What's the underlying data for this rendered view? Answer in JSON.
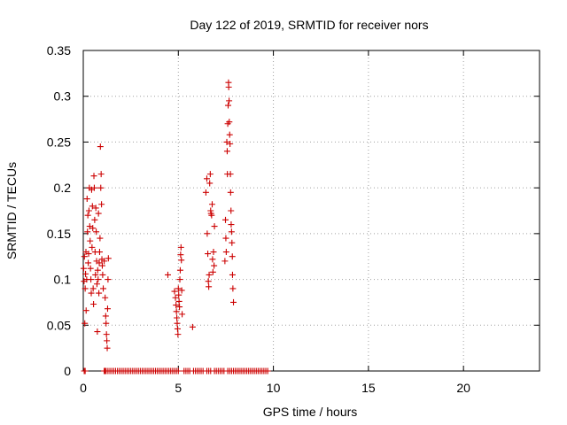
{
  "chart_data": {
    "type": "scatter",
    "title": "Day 122 of 2019, SRMTID for receiver nors",
    "xlabel": "GPS time / hours",
    "ylabel": "SRMTID / TECUs",
    "xlim": [
      0,
      24
    ],
    "ylim": [
      0,
      0.35
    ],
    "x_ticks": [
      0,
      5,
      10,
      15,
      20
    ],
    "y_ticks": [
      0,
      0.05,
      0.1,
      0.15,
      0.2,
      0.25,
      0.3,
      0.35
    ],
    "x_tick_labels": [
      "0",
      "5",
      "10",
      "15",
      "20"
    ],
    "y_tick_labels": [
      "0",
      "0.05",
      "0.1",
      "0.15",
      "0.2",
      "0.25",
      "0.3",
      "0.35"
    ],
    "grid": true,
    "marker": "plus",
    "color": "#cc0000",
    "series": [
      {
        "points": [
          [
            0.02,
            0.112
          ],
          [
            0.04,
            0.098
          ],
          [
            0.06,
            0.125
          ],
          [
            0.08,
            0.052
          ],
          [
            0.1,
            0.09
          ],
          [
            0.12,
            0.106
          ],
          [
            0.14,
            0.13
          ],
          [
            0.15,
            0.066
          ],
          [
            0.18,
            0.1
          ],
          [
            0.2,
            0.188
          ],
          [
            0.22,
            0.152
          ],
          [
            0.24,
            0.17
          ],
          [
            0.26,
            0.118
          ],
          [
            0.28,
            0.128
          ],
          [
            0.3,
            0.175
          ],
          [
            0.32,
            0.2
          ],
          [
            0.34,
            0.158
          ],
          [
            0.36,
            0.142
          ],
          [
            0.38,
            0.112
          ],
          [
            0.4,
            0.1
          ],
          [
            0.42,
            0.085
          ],
          [
            0.44,
            0.198
          ],
          [
            0.46,
            0.135
          ],
          [
            0.48,
            0.18
          ],
          [
            0.5,
            0.156
          ],
          [
            0.52,
            0.09
          ],
          [
            0.54,
            0.073
          ],
          [
            0.56,
            0.213
          ],
          [
            0.58,
            0.2
          ],
          [
            0.6,
            0.165
          ],
          [
            0.62,
            0.13
          ],
          [
            0.64,
            0.105
          ],
          [
            0.66,
            0.178
          ],
          [
            0.68,
            0.152
          ],
          [
            0.7,
            0.12
          ],
          [
            0.72,
            0.095
          ],
          [
            0.74,
            0.043
          ],
          [
            0.76,
            0.11
          ],
          [
            0.78,
            0.1
          ],
          [
            0.8,
            0.172
          ],
          [
            0.82,
            0.085
          ],
          [
            0.84,
            0.118
          ],
          [
            0.86,
            0.13
          ],
          [
            0.88,
            0.145
          ],
          [
            0.9,
            0.245
          ],
          [
            0.92,
            0.2
          ],
          [
            0.94,
            0.215
          ],
          [
            0.96,
            0.182
          ],
          [
            0.98,
            0.122
          ],
          [
            1.0,
            0.115
          ],
          [
            1.02,
            0.105
          ],
          [
            1.05,
            0.09
          ],
          [
            1.1,
            0.12
          ],
          [
            1.15,
            0.08
          ],
          [
            1.18,
            0.06
          ],
          [
            1.2,
            0.052
          ],
          [
            1.22,
            0.04
          ],
          [
            1.24,
            0.033
          ],
          [
            1.26,
            0.025
          ],
          [
            1.28,
            0.068
          ],
          [
            1.3,
            0.1
          ],
          [
            1.32,
            0.123
          ],
          [
            4.45,
            0.105
          ],
          [
            4.8,
            0.087
          ],
          [
            4.85,
            0.08
          ],
          [
            4.88,
            0.072
          ],
          [
            4.9,
            0.065
          ],
          [
            4.92,
            0.058
          ],
          [
            4.94,
            0.052
          ],
          [
            4.96,
            0.046
          ],
          [
            4.98,
            0.04
          ],
          [
            5.0,
            0.09
          ],
          [
            5.02,
            0.083
          ],
          [
            5.04,
            0.076
          ],
          [
            5.06,
            0.07
          ],
          [
            5.08,
            0.1
          ],
          [
            5.1,
            0.11
          ],
          [
            5.12,
            0.127
          ],
          [
            5.14,
            0.135
          ],
          [
            5.16,
            0.121
          ],
          [
            5.18,
            0.088
          ],
          [
            5.2,
            0.062
          ],
          [
            5.75,
            0.048
          ],
          [
            6.45,
            0.195
          ],
          [
            6.5,
            0.21
          ],
          [
            6.52,
            0.15
          ],
          [
            6.55,
            0.128
          ],
          [
            6.58,
            0.098
          ],
          [
            6.6,
            0.092
          ],
          [
            6.62,
            0.105
          ],
          [
            6.65,
            0.205
          ],
          [
            6.68,
            0.215
          ],
          [
            6.7,
            0.175
          ],
          [
            6.72,
            0.172
          ],
          [
            6.75,
            0.17
          ],
          [
            6.78,
            0.182
          ],
          [
            6.8,
            0.122
          ],
          [
            6.82,
            0.108
          ],
          [
            6.85,
            0.13
          ],
          [
            6.88,
            0.115
          ],
          [
            6.9,
            0.158
          ],
          [
            7.45,
            0.12
          ],
          [
            7.48,
            0.165
          ],
          [
            7.5,
            0.145
          ],
          [
            7.52,
            0.13
          ],
          [
            7.55,
            0.25
          ],
          [
            7.57,
            0.24
          ],
          [
            7.58,
            0.215
          ],
          [
            7.6,
            0.27
          ],
          [
            7.62,
            0.29
          ],
          [
            7.64,
            0.315
          ],
          [
            7.65,
            0.31
          ],
          [
            7.67,
            0.295
          ],
          [
            7.68,
            0.272
          ],
          [
            7.7,
            0.258
          ],
          [
            7.72,
            0.248
          ],
          [
            7.74,
            0.215
          ],
          [
            7.75,
            0.195
          ],
          [
            7.77,
            0.175
          ],
          [
            7.78,
            0.16
          ],
          [
            7.8,
            0.152
          ],
          [
            7.82,
            0.14
          ],
          [
            7.84,
            0.125
          ],
          [
            7.85,
            0.105
          ],
          [
            7.87,
            0.09
          ],
          [
            7.9,
            0.075
          ],
          [
            0.05,
            0
          ],
          [
            0.1,
            0
          ],
          [
            1.1,
            0
          ],
          [
            1.15,
            0
          ],
          [
            1.2,
            0
          ],
          [
            1.3,
            0
          ],
          [
            1.4,
            0
          ],
          [
            1.5,
            0
          ],
          [
            1.6,
            0
          ],
          [
            1.7,
            0
          ],
          [
            1.8,
            0
          ],
          [
            1.9,
            0
          ],
          [
            2.0,
            0
          ],
          [
            2.1,
            0
          ],
          [
            2.2,
            0
          ],
          [
            2.3,
            0
          ],
          [
            2.4,
            0
          ],
          [
            2.5,
            0
          ],
          [
            2.6,
            0
          ],
          [
            2.7,
            0
          ],
          [
            2.8,
            0
          ],
          [
            2.9,
            0
          ],
          [
            3.0,
            0
          ],
          [
            3.1,
            0
          ],
          [
            3.2,
            0
          ],
          [
            3.3,
            0
          ],
          [
            3.4,
            0
          ],
          [
            3.5,
            0
          ],
          [
            3.6,
            0
          ],
          [
            3.7,
            0
          ],
          [
            3.8,
            0
          ],
          [
            3.9,
            0
          ],
          [
            4.0,
            0
          ],
          [
            4.1,
            0
          ],
          [
            4.2,
            0
          ],
          [
            4.3,
            0
          ],
          [
            4.4,
            0
          ],
          [
            4.5,
            0
          ],
          [
            4.6,
            0
          ],
          [
            4.7,
            0
          ],
          [
            4.8,
            0
          ],
          [
            4.9,
            0
          ],
          [
            5.0,
            0
          ],
          [
            5.3,
            0
          ],
          [
            5.4,
            0
          ],
          [
            5.5,
            0
          ],
          [
            5.6,
            0
          ],
          [
            5.8,
            0
          ],
          [
            5.9,
            0
          ],
          [
            6.0,
            0
          ],
          [
            6.1,
            0
          ],
          [
            6.2,
            0
          ],
          [
            6.3,
            0
          ],
          [
            6.5,
            0
          ],
          [
            6.6,
            0
          ],
          [
            6.7,
            0
          ],
          [
            6.9,
            0
          ],
          [
            7.0,
            0
          ],
          [
            7.1,
            0
          ],
          [
            7.2,
            0
          ],
          [
            7.3,
            0
          ],
          [
            7.4,
            0
          ],
          [
            7.6,
            0
          ],
          [
            7.7,
            0
          ],
          [
            7.8,
            0
          ],
          [
            7.9,
            0
          ],
          [
            8.0,
            0
          ],
          [
            8.1,
            0
          ],
          [
            8.2,
            0
          ],
          [
            8.3,
            0
          ],
          [
            8.4,
            0
          ],
          [
            8.5,
            0
          ],
          [
            8.6,
            0
          ],
          [
            8.7,
            0
          ],
          [
            8.8,
            0
          ],
          [
            8.9,
            0
          ],
          [
            9.0,
            0
          ],
          [
            9.1,
            0
          ],
          [
            9.2,
            0
          ],
          [
            9.3,
            0
          ],
          [
            9.4,
            0
          ],
          [
            9.5,
            0
          ],
          [
            9.6,
            0
          ],
          [
            9.7,
            0
          ]
        ]
      }
    ]
  }
}
